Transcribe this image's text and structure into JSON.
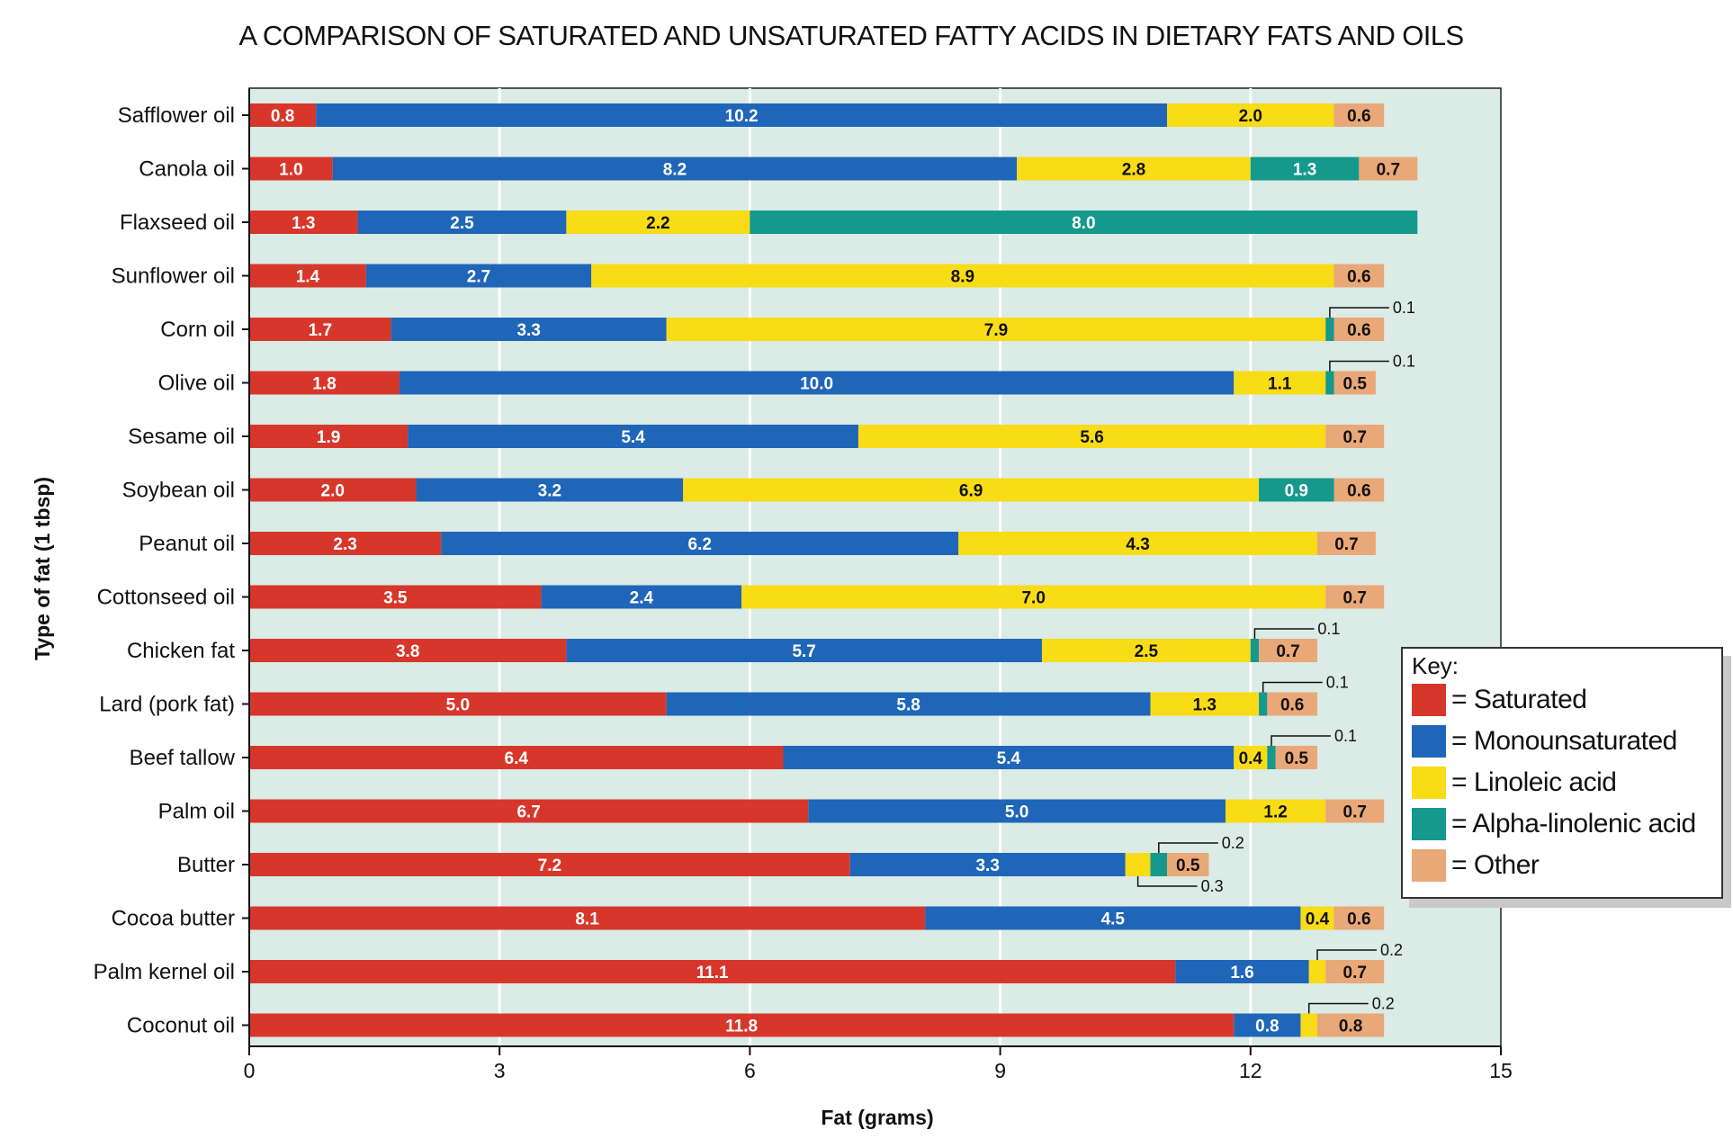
{
  "chart_data": {
    "type": "bar",
    "orientation": "horizontal",
    "stacked": true,
    "title": "A COMPARISON OF SATURATED AND UNSATURATED FATTY ACIDS IN DIETARY FATS AND OILS",
    "xlabel": "Fat (grams)",
    "ylabel": "Type of fat (1 tbsp)",
    "xlim": [
      0,
      15
    ],
    "xticks": [
      "0",
      "3",
      "6",
      "9",
      "12",
      "15"
    ],
    "grid": "vertical",
    "background_color": "#dbebe6",
    "legend_placement": "right",
    "legend_title": "Key:",
    "categories": [
      "Safflower oil",
      "Canola oil",
      "Flaxseed oil",
      "Sunflower oil",
      "Corn oil",
      "Olive oil",
      "Sesame oil",
      "Soybean oil",
      "Peanut oil",
      "Cottonseed oil",
      "Chicken fat",
      "Lard (pork fat)",
      "Beef tallow",
      "Palm oil",
      "Butter",
      "Cocoa butter",
      "Palm kernel oil",
      "Coconut oil"
    ],
    "series": [
      {
        "name": "= Saturated",
        "color": "#d7372a",
        "text_color": "#ffffff",
        "values": [
          0.8,
          1.0,
          1.3,
          1.4,
          1.7,
          1.8,
          1.9,
          2.0,
          2.3,
          3.5,
          3.8,
          5.0,
          6.4,
          6.7,
          7.2,
          8.1,
          11.1,
          11.8
        ]
      },
      {
        "name": "= Monounsaturated",
        "color": "#1f66b8",
        "text_color": "#ffffff",
        "values": [
          10.2,
          8.2,
          2.5,
          2.7,
          3.3,
          10.0,
          5.4,
          3.2,
          6.2,
          2.4,
          5.7,
          5.8,
          5.4,
          5.0,
          3.3,
          4.5,
          1.6,
          0.8
        ]
      },
      {
        "name": "= Linoleic acid",
        "color": "#f7dc16",
        "text_color": "#111111",
        "values": [
          2.0,
          2.8,
          2.2,
          8.9,
          7.9,
          1.1,
          5.6,
          6.9,
          4.3,
          7.0,
          2.5,
          1.3,
          0.4,
          1.2,
          0.3,
          0.4,
          0.2,
          0.2
        ]
      },
      {
        "name": "= Alpha-linolenic acid",
        "color": "#14998c",
        "text_color": "#ffffff",
        "values": [
          0,
          1.3,
          8.0,
          0,
          0.1,
          0.1,
          0,
          0.9,
          0,
          0,
          0.1,
          0.1,
          0.1,
          0,
          0.2,
          0,
          0,
          0
        ]
      },
      {
        "name": "= Other",
        "color": "#e9a878",
        "text_color": "#111111",
        "values": [
          0.6,
          0.7,
          0,
          0.6,
          0.6,
          0.5,
          0.7,
          0.6,
          0.7,
          0.7,
          0.7,
          0.6,
          0.5,
          0.7,
          0.5,
          0.6,
          0.7,
          0.8
        ]
      }
    ],
    "segment_labels": [
      [
        "0.8",
        "10.2",
        "2.0",
        "",
        "0.6"
      ],
      [
        "1.0",
        "8.2",
        "2.8",
        "1.3",
        "0.7"
      ],
      [
        "1.3",
        "2.5",
        "2.2",
        "8.0",
        ""
      ],
      [
        "1.4",
        "2.7",
        "8.9",
        "",
        "0.6"
      ],
      [
        "1.7",
        "3.3",
        "7.9",
        "",
        "0.6"
      ],
      [
        "1.8",
        "10.0",
        "1.1",
        "",
        "0.5"
      ],
      [
        "1.9",
        "5.4",
        "5.6",
        "",
        "0.7"
      ],
      [
        "2.0",
        "3.2",
        "6.9",
        "0.9",
        "0.6"
      ],
      [
        "2.3",
        "6.2",
        "4.3",
        "",
        "0.7"
      ],
      [
        "3.5",
        "2.4",
        "7.0",
        "",
        "0.7"
      ],
      [
        "3.8",
        "5.7",
        "2.5",
        "",
        "0.7"
      ],
      [
        "5.0",
        "5.8",
        "1.3",
        "",
        "0.6"
      ],
      [
        "6.4",
        "5.4",
        "0.4",
        "",
        "0.5"
      ],
      [
        "6.7",
        "5.0",
        "1.2",
        "",
        "0.7"
      ],
      [
        "7.2",
        "3.3",
        "",
        "",
        "0.5"
      ],
      [
        "8.1",
        "4.5",
        "0.4",
        "",
        "0.6"
      ],
      [
        "11.1",
        "1.6",
        "",
        "",
        "0.7"
      ],
      [
        "11.8",
        "0.8",
        "",
        "",
        "0.8"
      ]
    ],
    "callouts": [
      {
        "category": "Corn oil",
        "series": "= Alpha-linolenic acid",
        "label": "0.1",
        "side": "above"
      },
      {
        "category": "Olive oil",
        "series": "= Alpha-linolenic acid",
        "label": "0.1",
        "side": "above"
      },
      {
        "category": "Chicken fat",
        "series": "= Alpha-linolenic acid",
        "label": "0.1",
        "side": "above"
      },
      {
        "category": "Lard (pork fat)",
        "series": "= Alpha-linolenic acid",
        "label": "0.1",
        "side": "above"
      },
      {
        "category": "Beef tallow",
        "series": "= Alpha-linolenic acid",
        "label": "0.1",
        "side": "above"
      },
      {
        "category": "Butter",
        "series": "= Alpha-linolenic acid",
        "label": "0.2",
        "side": "above"
      },
      {
        "category": "Butter",
        "series": "= Linoleic acid",
        "label": "0.3",
        "side": "below"
      },
      {
        "category": "Palm kernel oil",
        "series": "= Linoleic acid",
        "label": "0.2",
        "side": "above"
      },
      {
        "category": "Coconut oil",
        "series": "= Linoleic acid",
        "label": "0.2",
        "side": "above"
      }
    ]
  }
}
